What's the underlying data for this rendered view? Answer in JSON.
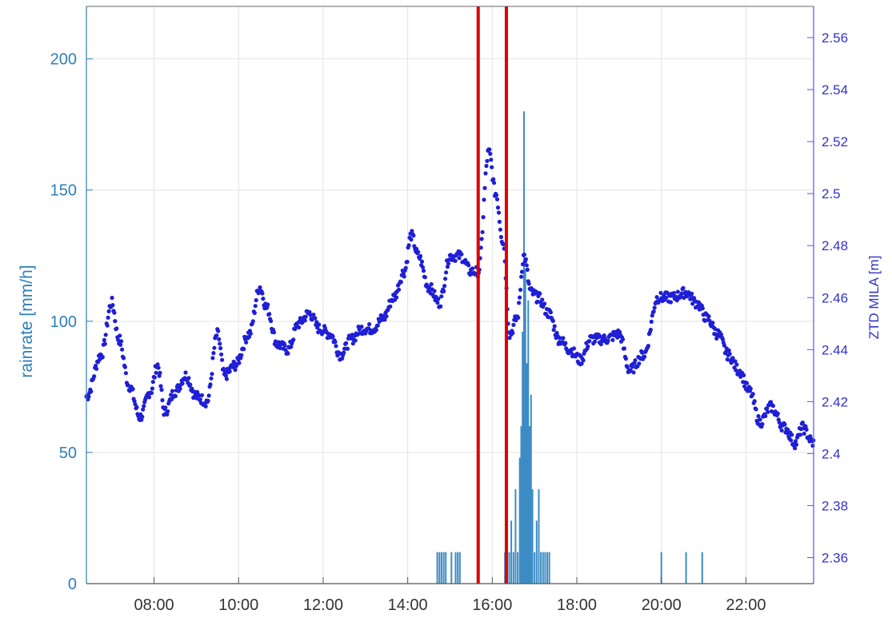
{
  "chart_data": {
    "type": "line",
    "xlabel": "",
    "ylabel_left": "rainrate [mm/h]",
    "ylabel_right": "ZTD MILA [m]",
    "x_range": [
      "06:24",
      "23:36"
    ],
    "x_ticks": [
      "08:00",
      "10:00",
      "12:00",
      "14:00",
      "16:00",
      "18:00",
      "20:00",
      "22:00"
    ],
    "y_left_range": [
      0,
      220
    ],
    "y_left_ticks": [
      0,
      50,
      100,
      150,
      200
    ],
    "y_right_range": [
      2.35,
      2.572
    ],
    "y_right_ticks": [
      2.36,
      2.38,
      2.4,
      2.42,
      2.44,
      2.46,
      2.48,
      2.5,
      2.52,
      2.54,
      2.56
    ],
    "grid": true,
    "colors": {
      "rain": "#3d8cc4",
      "ztd": "#1f1fd6",
      "markers": "#dd0000",
      "left_axis": "#2e7fb8",
      "right_axis": "#5555ee"
    },
    "vertical_markers": [
      "15:40",
      "16:20"
    ],
    "series": [
      {
        "axis": "right",
        "style": "dots",
        "points": [
          [
            "06:24",
            2.422
          ],
          [
            "06:45",
            2.438
          ],
          [
            "07:00",
            2.458
          ],
          [
            "07:10",
            2.444
          ],
          [
            "07:25",
            2.426
          ],
          [
            "07:40",
            2.414
          ],
          [
            "07:55",
            2.424
          ],
          [
            "08:05",
            2.434
          ],
          [
            "08:15",
            2.416
          ],
          [
            "08:30",
            2.424
          ],
          [
            "08:45",
            2.43
          ],
          [
            "09:00",
            2.422
          ],
          [
            "09:15",
            2.42
          ],
          [
            "09:30",
            2.446
          ],
          [
            "09:40",
            2.43
          ],
          [
            "09:55",
            2.434
          ],
          [
            "10:15",
            2.446
          ],
          [
            "10:30",
            2.464
          ],
          [
            "10:40",
            2.456
          ],
          [
            "10:55",
            2.442
          ],
          [
            "11:10",
            2.44
          ],
          [
            "11:25",
            2.45
          ],
          [
            "11:40",
            2.454
          ],
          [
            "11:55",
            2.448
          ],
          [
            "12:10",
            2.446
          ],
          [
            "12:25",
            2.438
          ],
          [
            "12:40",
            2.444
          ],
          [
            "12:55",
            2.448
          ],
          [
            "13:10",
            2.448
          ],
          [
            "13:25",
            2.452
          ],
          [
            "13:40",
            2.46
          ],
          [
            "13:55",
            2.47
          ],
          [
            "14:05",
            2.484
          ],
          [
            "14:15",
            2.476
          ],
          [
            "14:30",
            2.464
          ],
          [
            "14:45",
            2.458
          ],
          [
            "15:00",
            2.476
          ],
          [
            "15:15",
            2.476
          ],
          [
            "15:30",
            2.47
          ],
          [
            "15:40",
            2.47
          ],
          [
            "15:55",
            2.516
          ],
          [
            "16:05",
            2.5
          ],
          [
            "16:15",
            2.482
          ],
          [
            "16:25",
            2.446
          ],
          [
            "16:35",
            2.452
          ],
          [
            "16:45",
            2.476
          ],
          [
            "16:55",
            2.462
          ],
          [
            "17:05",
            2.46
          ],
          [
            "17:20",
            2.454
          ],
          [
            "17:35",
            2.444
          ],
          [
            "17:50",
            2.44
          ],
          [
            "18:05",
            2.436
          ],
          [
            "18:20",
            2.444
          ],
          [
            "18:40",
            2.444
          ],
          [
            "19:00",
            2.446
          ],
          [
            "19:15",
            2.432
          ],
          [
            "19:35",
            2.438
          ],
          [
            "19:55",
            2.46
          ],
          [
            "20:15",
            2.46
          ],
          [
            "20:35",
            2.462
          ],
          [
            "20:50",
            2.458
          ],
          [
            "21:05",
            2.452
          ],
          [
            "21:20",
            2.446
          ],
          [
            "21:35",
            2.438
          ],
          [
            "21:50",
            2.432
          ],
          [
            "22:05",
            2.424
          ],
          [
            "22:20",
            2.412
          ],
          [
            "22:35",
            2.418
          ],
          [
            "22:55",
            2.41
          ],
          [
            "23:10",
            2.404
          ],
          [
            "23:20",
            2.41
          ],
          [
            "23:36",
            2.404
          ]
        ]
      },
      {
        "axis": "left",
        "style": "bars",
        "points": [
          [
            "14:42",
            12
          ],
          [
            "14:45",
            12
          ],
          [
            "14:48",
            12
          ],
          [
            "14:51",
            12
          ],
          [
            "14:54",
            12
          ],
          [
            "15:02",
            12
          ],
          [
            "15:08",
            12
          ],
          [
            "15:11",
            12
          ],
          [
            "15:14",
            12
          ],
          [
            "16:18",
            12
          ],
          [
            "16:24",
            12
          ],
          [
            "16:27",
            24
          ],
          [
            "16:30",
            12
          ],
          [
            "16:33",
            36
          ],
          [
            "16:36",
            12
          ],
          [
            "16:39",
            48
          ],
          [
            "16:41",
            60
          ],
          [
            "16:43",
            96
          ],
          [
            "16:45",
            180
          ],
          [
            "16:47",
            120
          ],
          [
            "16:49",
            84
          ],
          [
            "16:51",
            108
          ],
          [
            "16:53",
            60
          ],
          [
            "16:55",
            72
          ],
          [
            "16:57",
            36
          ],
          [
            "17:00",
            12
          ],
          [
            "17:03",
            24
          ],
          [
            "17:06",
            36
          ],
          [
            "17:09",
            12
          ],
          [
            "17:12",
            12
          ],
          [
            "17:15",
            12
          ],
          [
            "17:18",
            12
          ],
          [
            "17:21",
            12
          ],
          [
            "20:00",
            12
          ],
          [
            "20:35",
            12
          ],
          [
            "20:58",
            12
          ]
        ]
      }
    ]
  }
}
